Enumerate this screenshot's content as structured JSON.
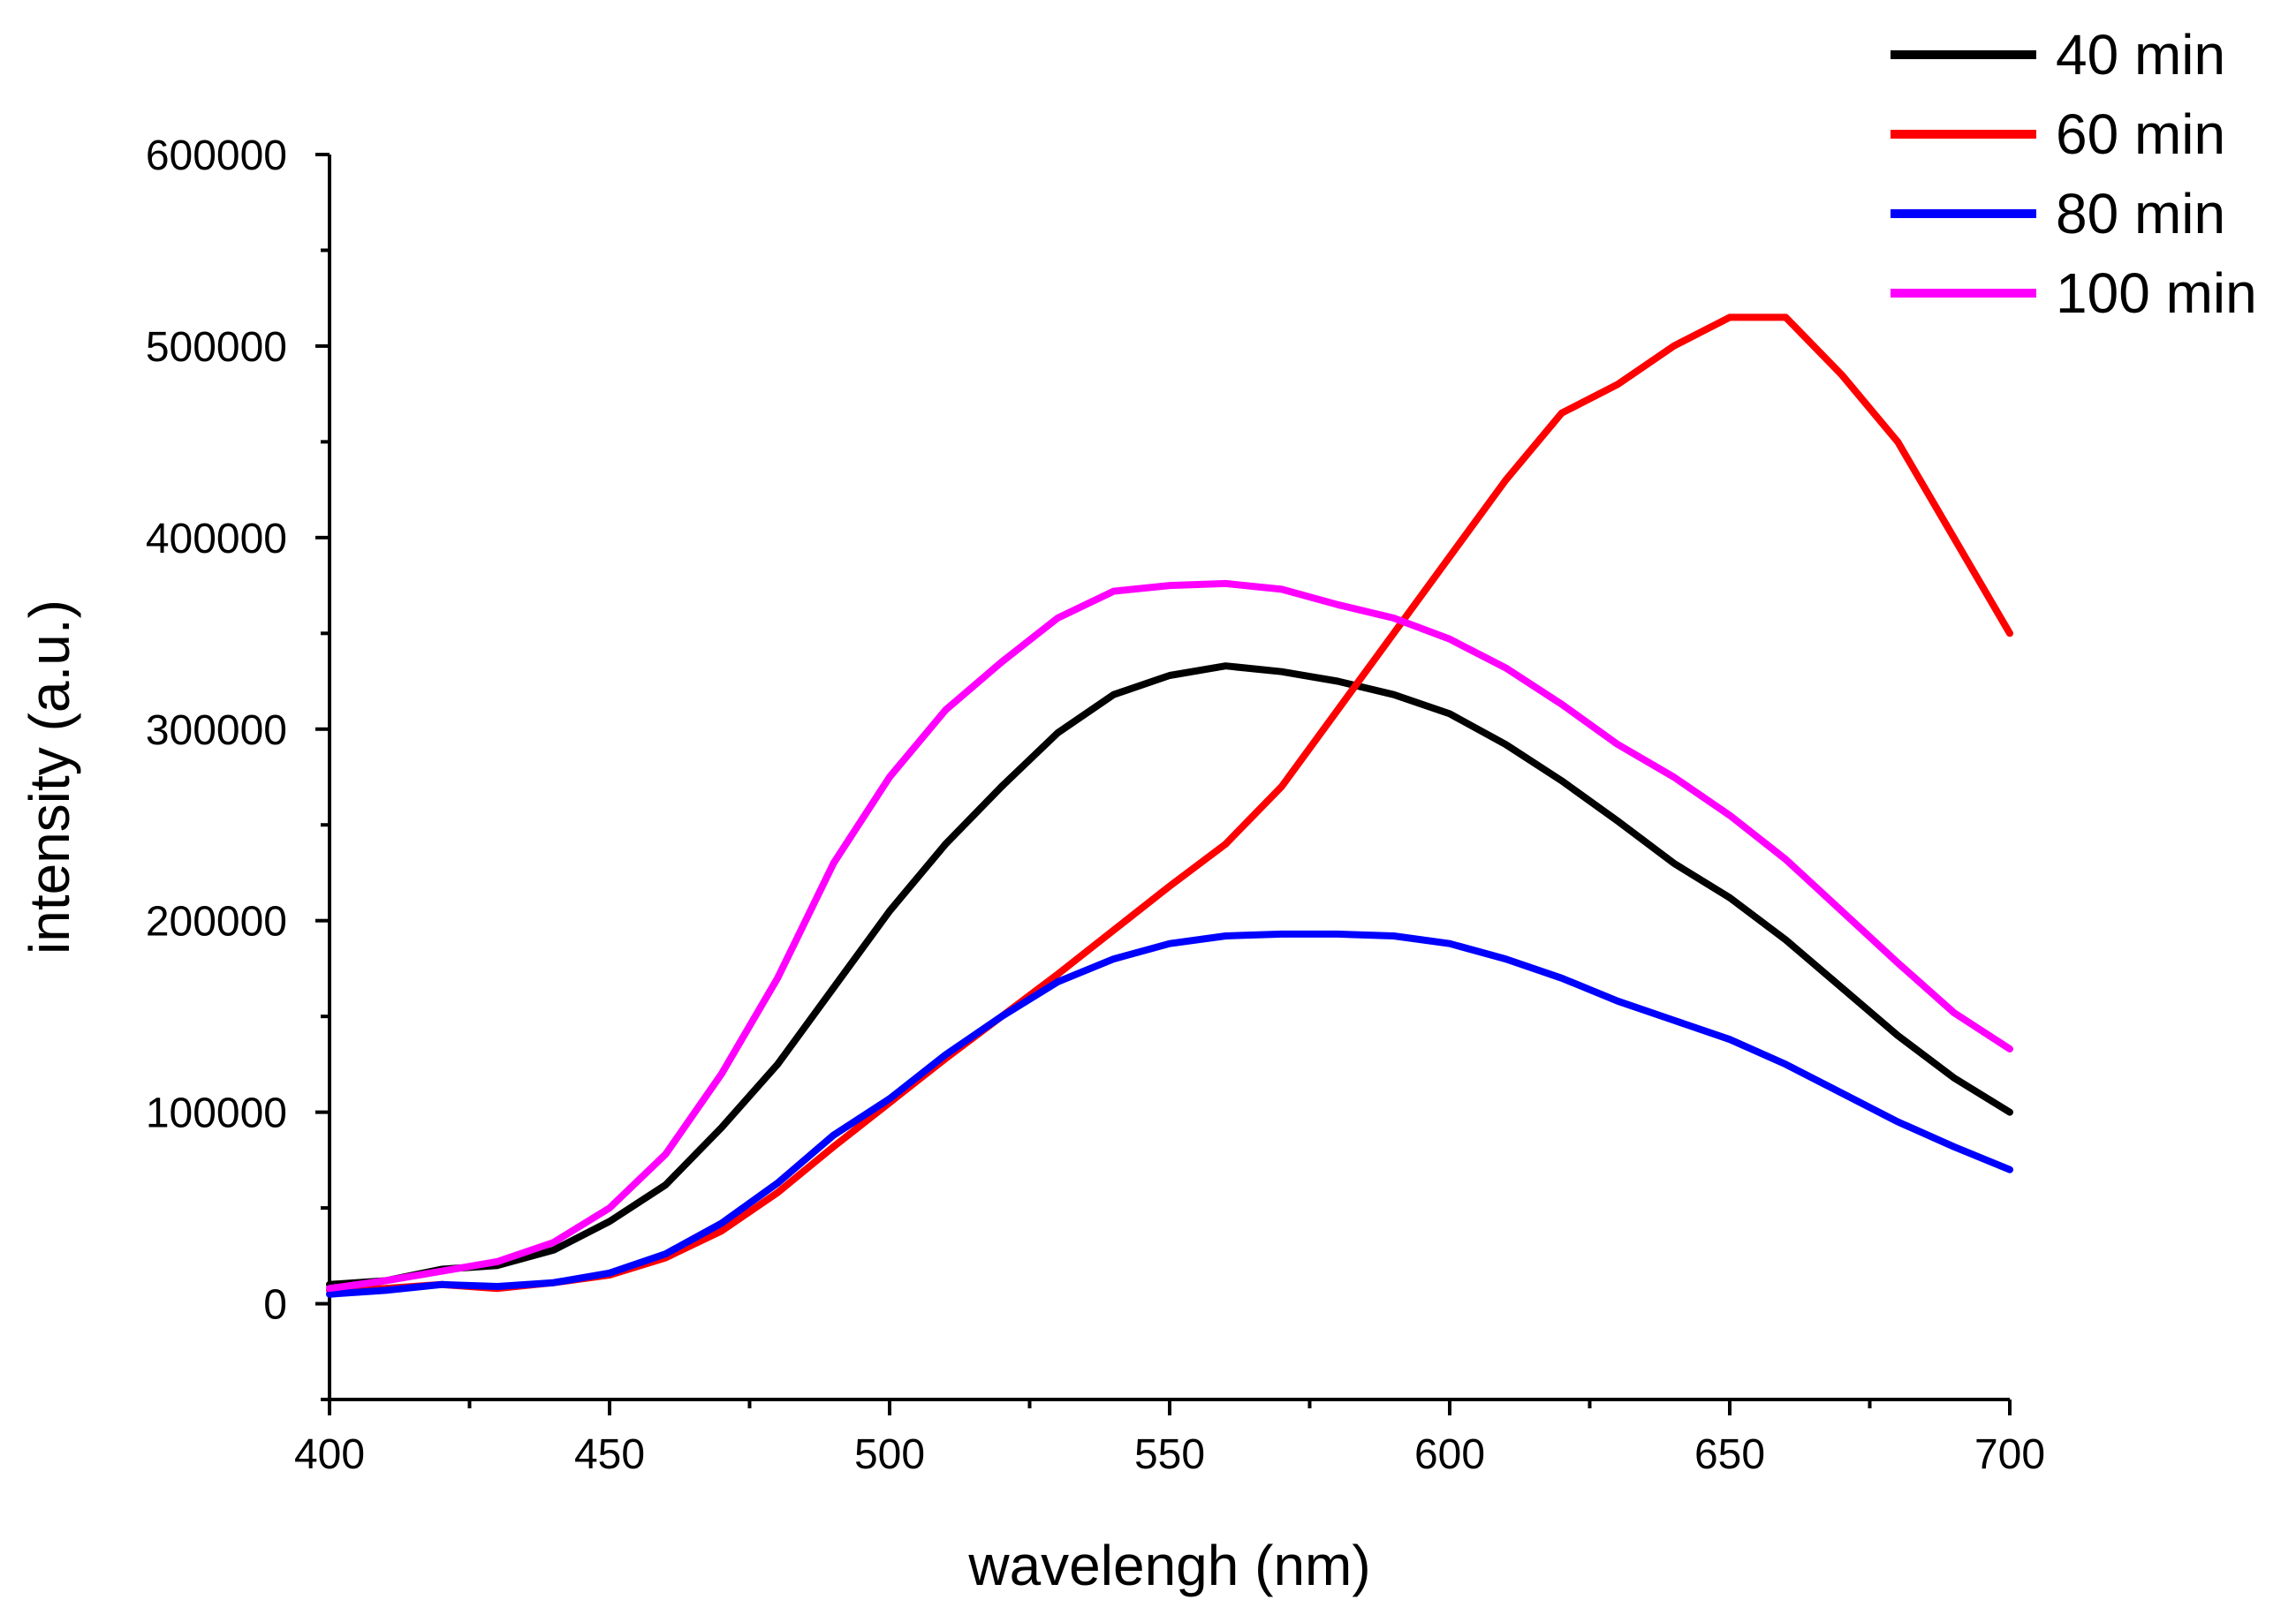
{
  "chart_data": {
    "type": "line",
    "title": "",
    "xlabel": "wavelengh (nm)",
    "ylabel": "intensity (a.u.)",
    "xlim": [
      400,
      700
    ],
    "ylim": [
      -50000,
      600000
    ],
    "xticks": [
      400,
      450,
      500,
      550,
      600,
      650,
      700
    ],
    "xtick_labels": [
      "400",
      "450",
      "500",
      "550",
      "600",
      "650",
      "700"
    ],
    "yticks": [
      0,
      100000,
      200000,
      300000,
      400000,
      500000,
      600000
    ],
    "ytick_labels": [
      "0",
      "100000",
      "200000",
      "300000",
      "400000",
      "500000",
      "600000"
    ],
    "grid": false,
    "legend_position": "top-right",
    "x": [
      400,
      410,
      420,
      430,
      440,
      450,
      460,
      470,
      480,
      490,
      500,
      510,
      520,
      530,
      540,
      550,
      560,
      570,
      580,
      590,
      600,
      610,
      620,
      630,
      640,
      650,
      660,
      670,
      680,
      690,
      700
    ],
    "series": [
      {
        "name": "40 min",
        "color": "#000000",
        "values": [
          10000,
          12000,
          18000,
          20000,
          28000,
          43000,
          62000,
          92000,
          125000,
          165000,
          205000,
          240000,
          270000,
          298000,
          318000,
          328000,
          333000,
          330000,
          325000,
          318000,
          308000,
          292000,
          273000,
          252000,
          230000,
          212000,
          190000,
          165000,
          140000,
          118000,
          100000
        ]
      },
      {
        "name": "60 min",
        "color": "#ff0000",
        "values": [
          7000,
          8000,
          10000,
          8000,
          11000,
          15000,
          24000,
          38000,
          58000,
          82000,
          105000,
          128000,
          150000,
          172000,
          195000,
          218000,
          240000,
          270000,
          310000,
          350000,
          390000,
          430000,
          465000,
          480000,
          500000,
          515000,
          515000,
          485000,
          450000,
          400000,
          350000
        ]
      },
      {
        "name": "80 min",
        "color": "#0000ff",
        "values": [
          5000,
          7000,
          10000,
          9000,
          11000,
          16000,
          26000,
          42000,
          63000,
          88000,
          107000,
          130000,
          150000,
          168000,
          180000,
          188000,
          192000,
          193000,
          193000,
          192000,
          188000,
          180000,
          170000,
          158000,
          148000,
          138000,
          125000,
          110000,
          95000,
          82000,
          70000
        ]
      },
      {
        "name": "100 min",
        "color": "#ff00ff",
        "values": [
          8000,
          12000,
          17000,
          22000,
          32000,
          50000,
          78000,
          120000,
          170000,
          230000,
          275000,
          310000,
          335000,
          358000,
          372000,
          375000,
          376000,
          373000,
          365000,
          358000,
          347000,
          332000,
          313000,
          292000,
          275000,
          255000,
          232000,
          205000,
          178000,
          152000,
          133000
        ]
      }
    ]
  }
}
